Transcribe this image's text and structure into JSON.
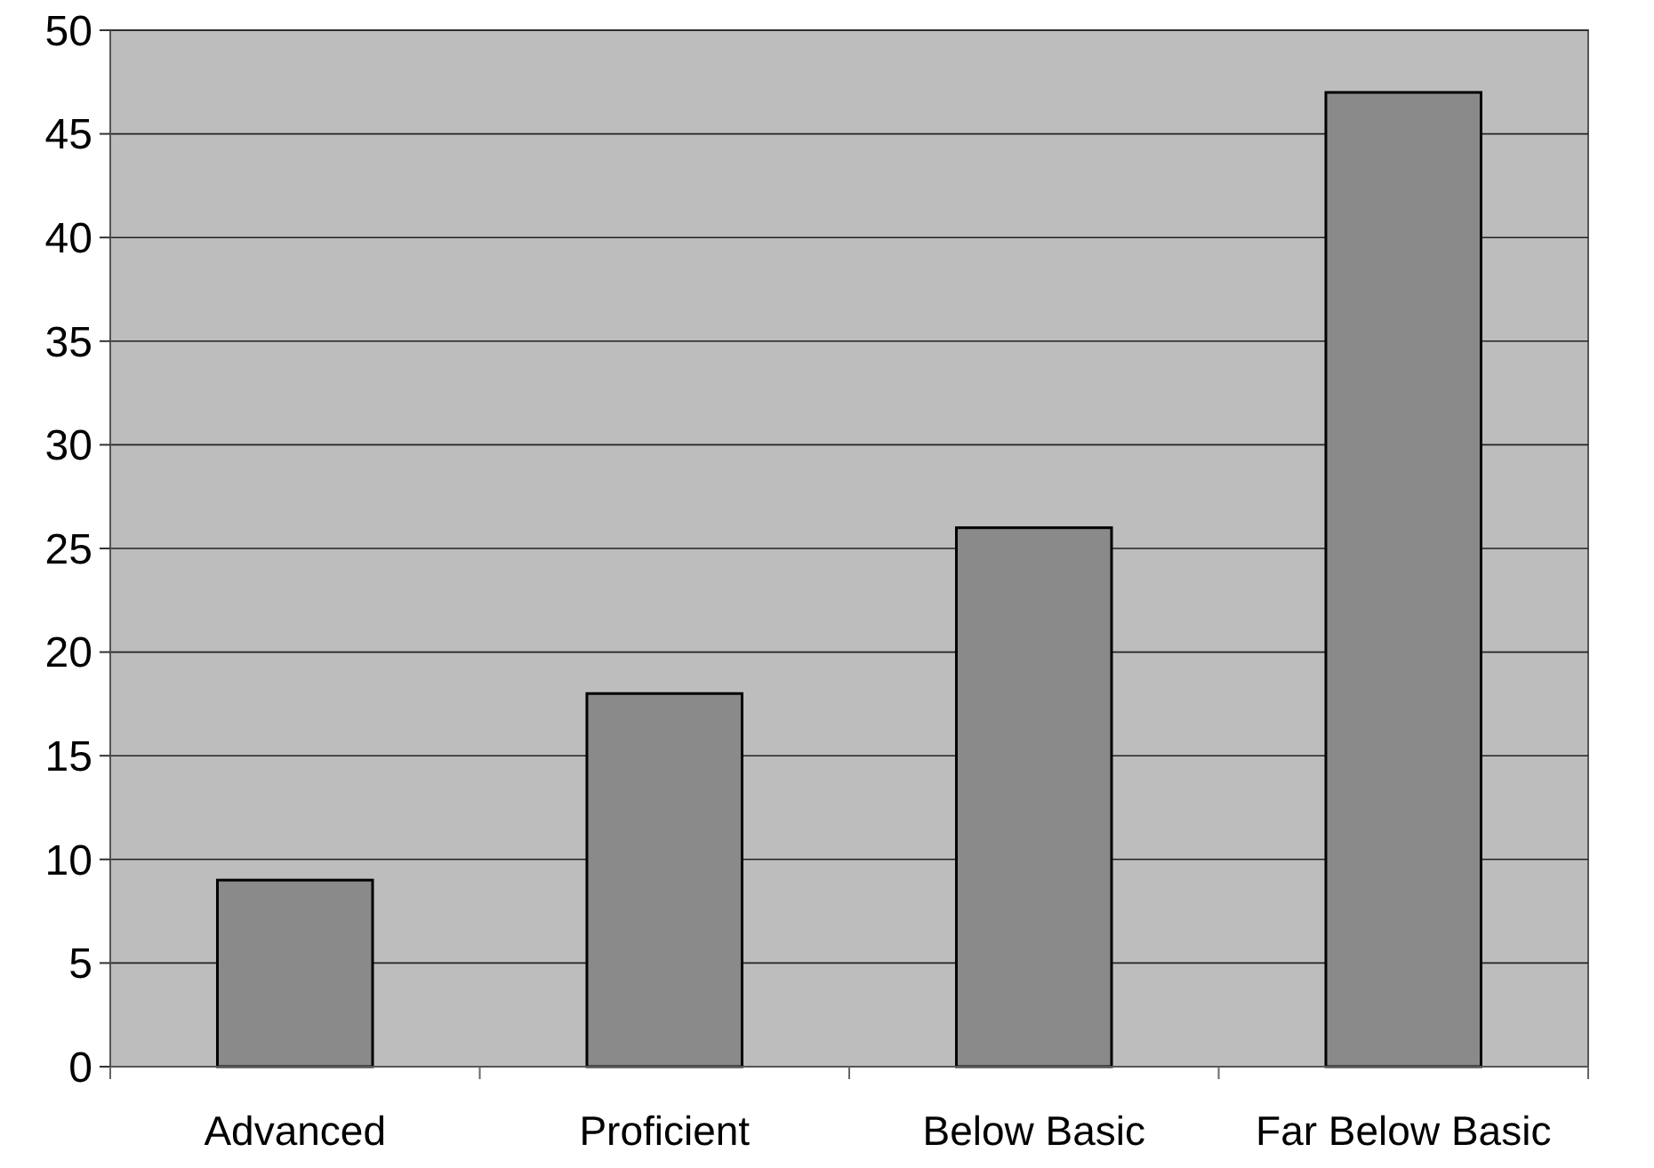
{
  "chart_data": {
    "type": "bar",
    "categories": [
      "Advanced",
      "Proficient",
      "Below Basic",
      "Far Below Basic"
    ],
    "values": [
      9,
      18,
      26,
      47
    ],
    "color": "#8a8a8a",
    "ylim": [
      0,
      50
    ],
    "yticks": [
      0,
      5,
      10,
      15,
      20,
      25,
      30,
      35,
      40,
      45,
      50
    ],
    "grid": "y"
  }
}
